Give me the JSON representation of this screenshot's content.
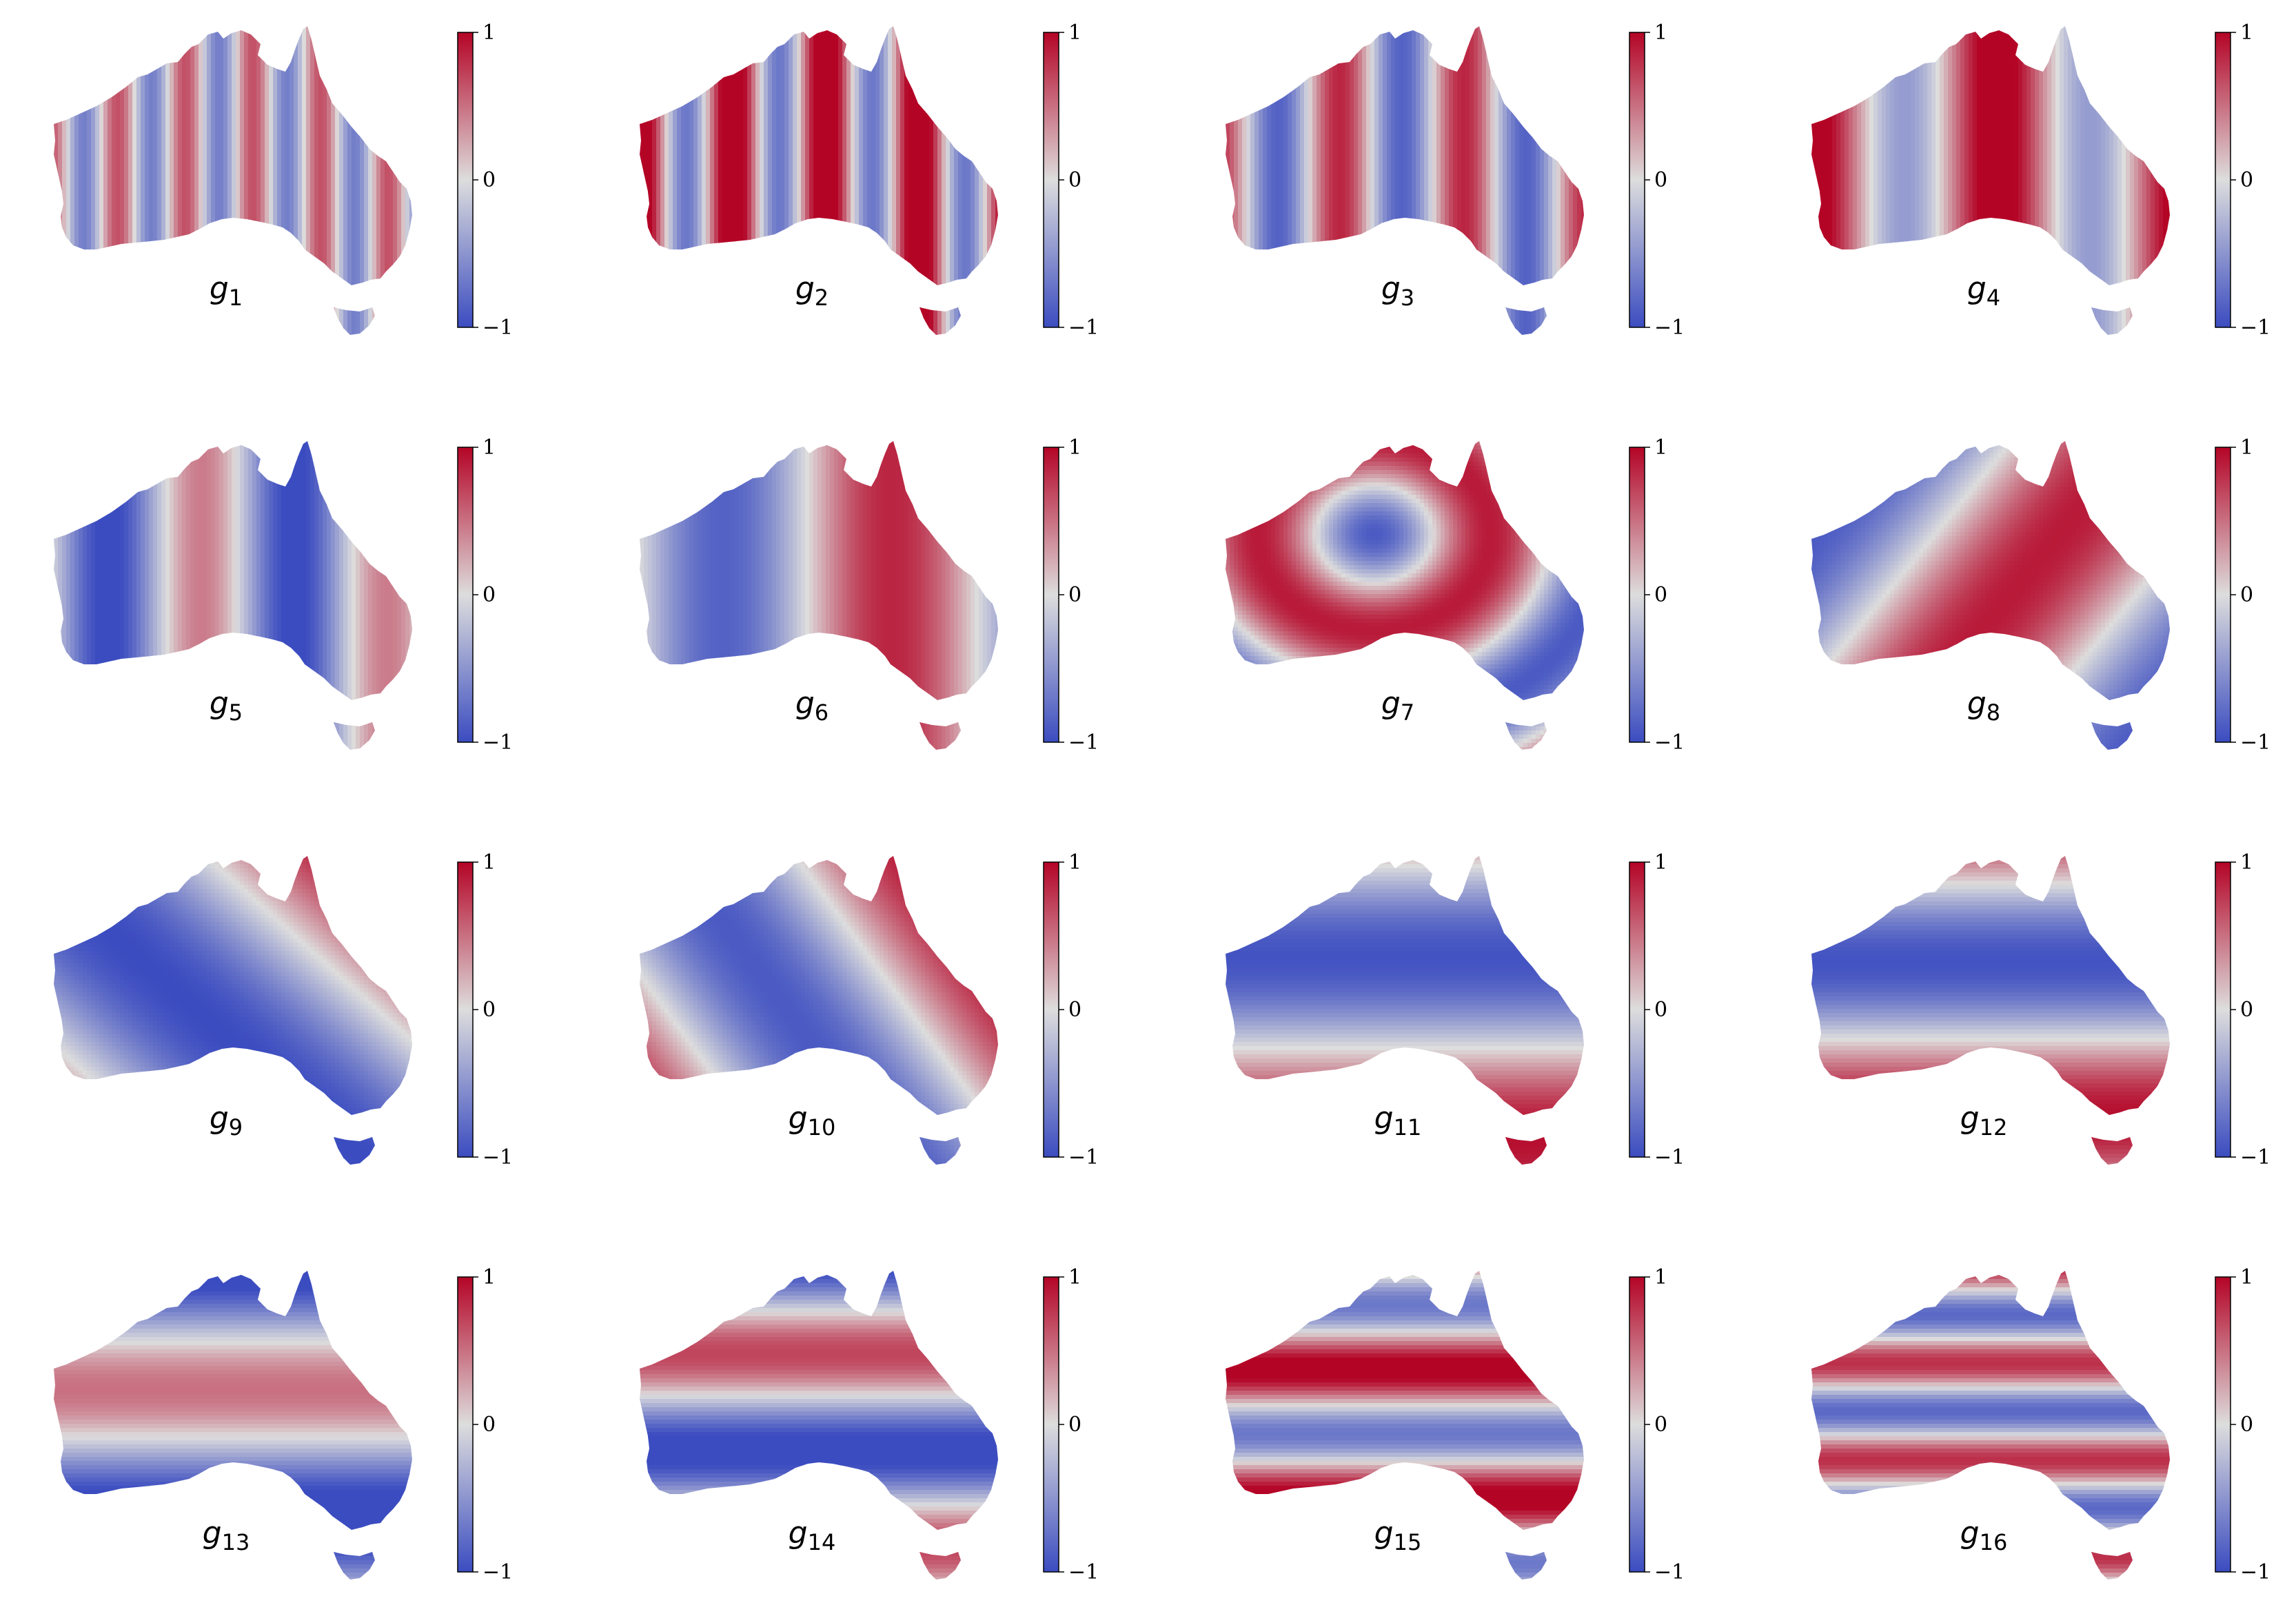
{
  "colorbar": {
    "colormap": "coolwarm",
    "low_color": "#3b4cc0",
    "mid_color": "#dddddd",
    "high_color": "#b40426",
    "ticks": [
      {
        "value": 1,
        "label": "1"
      },
      {
        "value": 0,
        "label": "0"
      },
      {
        "value": -1,
        "label": "−1"
      }
    ]
  },
  "chart_data": [
    {
      "type": "heatmap",
      "label_base": "g",
      "label_sub": "1",
      "pattern": "vertical",
      "frequency": 11.0,
      "phase": 0.35,
      "amplitude": 0.65,
      "clim": [
        -1,
        1
      ]
    },
    {
      "type": "heatmap",
      "label_base": "g",
      "label_sub": "2",
      "pattern": "vertical",
      "frequency": 8.0,
      "phase": 0.0,
      "amplitude": 1.0,
      "offset": 0.3,
      "clim": [
        -1,
        1
      ]
    },
    {
      "type": "heatmap",
      "label_base": "g",
      "label_sub": "3",
      "pattern": "vertical",
      "frequency": 6.0,
      "phase": 0.5,
      "amplitude": 0.85,
      "clim": [
        -1,
        1
      ]
    },
    {
      "type": "heatmap",
      "label_base": "g",
      "label_sub": "4",
      "pattern": "vertical",
      "frequency": 4.0,
      "phase": 0.0,
      "amplitude": 0.8,
      "offset": 0.35,
      "clim": [
        -1,
        1
      ]
    },
    {
      "type": "heatmap",
      "label_base": "g",
      "label_sub": "5",
      "pattern": "vertical",
      "frequency": 4.0,
      "phase": 1.3,
      "amplitude": 0.75,
      "offset": -0.3,
      "clim": [
        -1,
        1
      ]
    },
    {
      "type": "heatmap",
      "label_base": "g",
      "label_sub": "6",
      "pattern": "vertical",
      "frequency": 2.2,
      "phase": 1.6,
      "amplitude": 0.85,
      "clim": [
        -1,
        1
      ]
    },
    {
      "type": "heatmap",
      "label_base": "g",
      "label_sub": "7",
      "pattern": "radial",
      "center": [
        0.4,
        0.3
      ],
      "frequency": 1.6,
      "phase": 0.0,
      "amplitude": 0.9,
      "clim": [
        -1,
        1
      ]
    },
    {
      "type": "heatmap",
      "label_base": "g",
      "label_sub": "8",
      "pattern": "diagonal",
      "angle": 0.6,
      "frequency": 0.9,
      "phase": 2.2,
      "amplitude": 0.9,
      "clim": [
        -1,
        1
      ]
    },
    {
      "type": "heatmap",
      "label_base": "g",
      "label_sub": "9",
      "pattern": "diagonal",
      "angle": -0.75,
      "frequency": 0.7,
      "phase": 3.4,
      "amplitude": 1.0,
      "clim": [
        -1,
        1
      ]
    },
    {
      "type": "heatmap",
      "label_base": "g",
      "label_sub": "10",
      "pattern": "diagonal",
      "angle": -0.55,
      "frequency": 0.9,
      "phase": 2.7,
      "amplitude": 0.9,
      "clim": [
        -1,
        1
      ]
    },
    {
      "type": "heatmap",
      "label_base": "g",
      "label_sub": "11",
      "pattern": "horizontal",
      "frequency": 1.7,
      "phase": 1.4,
      "amplitude": 0.95,
      "clim": [
        -1,
        1
      ]
    },
    {
      "type": "heatmap",
      "label_base": "g",
      "label_sub": "12",
      "pattern": "horizontal",
      "frequency": 2.0,
      "phase": 1.0,
      "amplitude": 0.95,
      "clim": [
        -1,
        1
      ]
    },
    {
      "type": "heatmap",
      "label_base": "g",
      "label_sub": "13",
      "pattern": "horizontal",
      "frequency": 2.4,
      "phase": 3.4,
      "amplitude": 0.85,
      "offset": -0.35,
      "clim": [
        -1,
        1
      ]
    },
    {
      "type": "heatmap",
      "label_base": "g",
      "label_sub": "14",
      "pattern": "horizontal",
      "frequency": 3.2,
      "phase": 3.6,
      "amplitude": 0.9,
      "offset": -0.2,
      "clim": [
        -1,
        1
      ]
    },
    {
      "type": "heatmap",
      "label_base": "g",
      "label_sub": "15",
      "pattern": "horizontal",
      "frequency": 4.8,
      "phase": 1.5,
      "amplitude": 0.9,
      "offset": 0.2,
      "clim": [
        -1,
        1
      ]
    },
    {
      "type": "heatmap",
      "label_base": "g",
      "label_sub": "16",
      "pattern": "horizontal",
      "frequency": 6.4,
      "phase": 0.3,
      "amplitude": 0.8,
      "clim": [
        -1,
        1
      ]
    }
  ]
}
